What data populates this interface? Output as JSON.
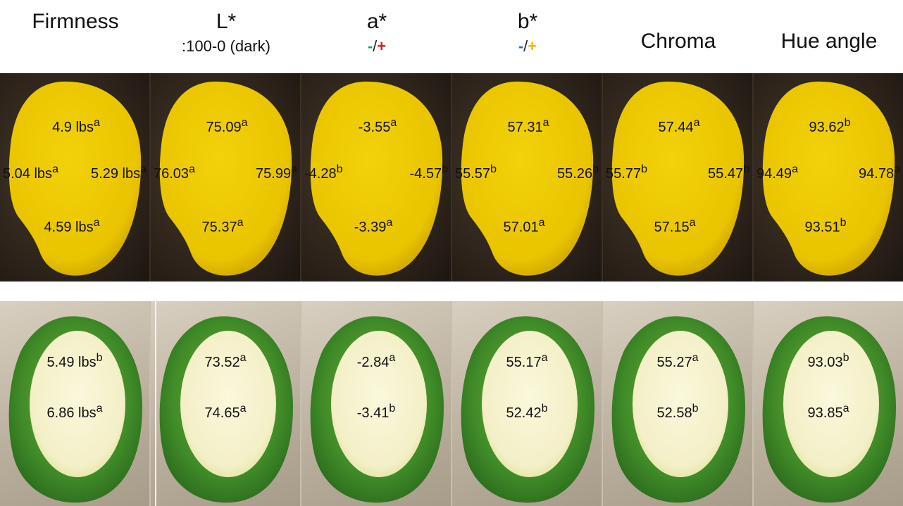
{
  "headers": [
    {
      "title": "Firmness"
    },
    {
      "title": "L*",
      "subtitle": ":100-0 (dark)"
    },
    {
      "title": "a*",
      "neg": "-",
      "slash": "/",
      "pos": "+"
    },
    {
      "title": "b*",
      "neg": "-",
      "slash": "/",
      "pos": "+"
    },
    {
      "title": "Chroma"
    },
    {
      "title": "Hue angle"
    }
  ],
  "colors": {
    "a_neg": "#14a06c",
    "a_pos": "#e01a1a",
    "b_neg": "#1f6fd0",
    "b_pos": "#f5b400",
    "ripe_flesh": "#f2d20a",
    "green_skin": "#3f8a28",
    "green_flesh": "#f3efc7"
  },
  "ripe": [
    {
      "top": {
        "v": "4.9 lbs",
        "s": "a"
      },
      "left": {
        "v": "5.04 lbs",
        "s": "a"
      },
      "right": {
        "v": "5.29 lbs",
        "s": "a"
      },
      "bottom": {
        "v": "4.59 lbs",
        "s": "a"
      }
    },
    {
      "top": {
        "v": "75.09",
        "s": "a"
      },
      "left": {
        "v": "76.03",
        "s": "a"
      },
      "right": {
        "v": "75.99",
        "s": "a"
      },
      "bottom": {
        "v": "75.37",
        "s": "a"
      }
    },
    {
      "top": {
        "v": "-3.55",
        "s": "a"
      },
      "left": {
        "v": "-4.28",
        "s": "b"
      },
      "right": {
        "v": "-4.57",
        "s": "b"
      },
      "bottom": {
        "v": "-3.39",
        "s": "a"
      }
    },
    {
      "top": {
        "v": "57.31",
        "s": "a"
      },
      "left": {
        "v": "55.57",
        "s": "b"
      },
      "right": {
        "v": "55.26",
        "s": "b"
      },
      "bottom": {
        "v": "57.01",
        "s": "a"
      }
    },
    {
      "top": {
        "v": "57.44",
        "s": "a"
      },
      "left": {
        "v": "55.77",
        "s": "b"
      },
      "right": {
        "v": "55.47",
        "s": "b"
      },
      "bottom": {
        "v": "57.15",
        "s": "a"
      }
    },
    {
      "top": {
        "v": "93.62",
        "s": "b"
      },
      "left": {
        "v": "94.49",
        "s": "a"
      },
      "right": {
        "v": "94.78",
        "s": "a"
      },
      "bottom": {
        "v": "93.51",
        "s": "b"
      }
    }
  ],
  "green": [
    {
      "top": {
        "v": "5.49 lbs",
        "s": "b"
      },
      "bottom": {
        "v": "6.86 lbs",
        "s": "a"
      }
    },
    {
      "top": {
        "v": "73.52",
        "s": "a"
      },
      "bottom": {
        "v": "74.65",
        "s": "a"
      }
    },
    {
      "top": {
        "v": "-2.84",
        "s": "a"
      },
      "bottom": {
        "v": "-3.41",
        "s": "b"
      }
    },
    {
      "top": {
        "v": "55.17",
        "s": "a"
      },
      "bottom": {
        "v": "52.42",
        "s": "b"
      }
    },
    {
      "top": {
        "v": "55.27",
        "s": "a"
      },
      "bottom": {
        "v": "52.58",
        "s": "b"
      }
    },
    {
      "top": {
        "v": "93.03",
        "s": "b"
      },
      "bottom": {
        "v": "93.85",
        "s": "a"
      }
    }
  ]
}
